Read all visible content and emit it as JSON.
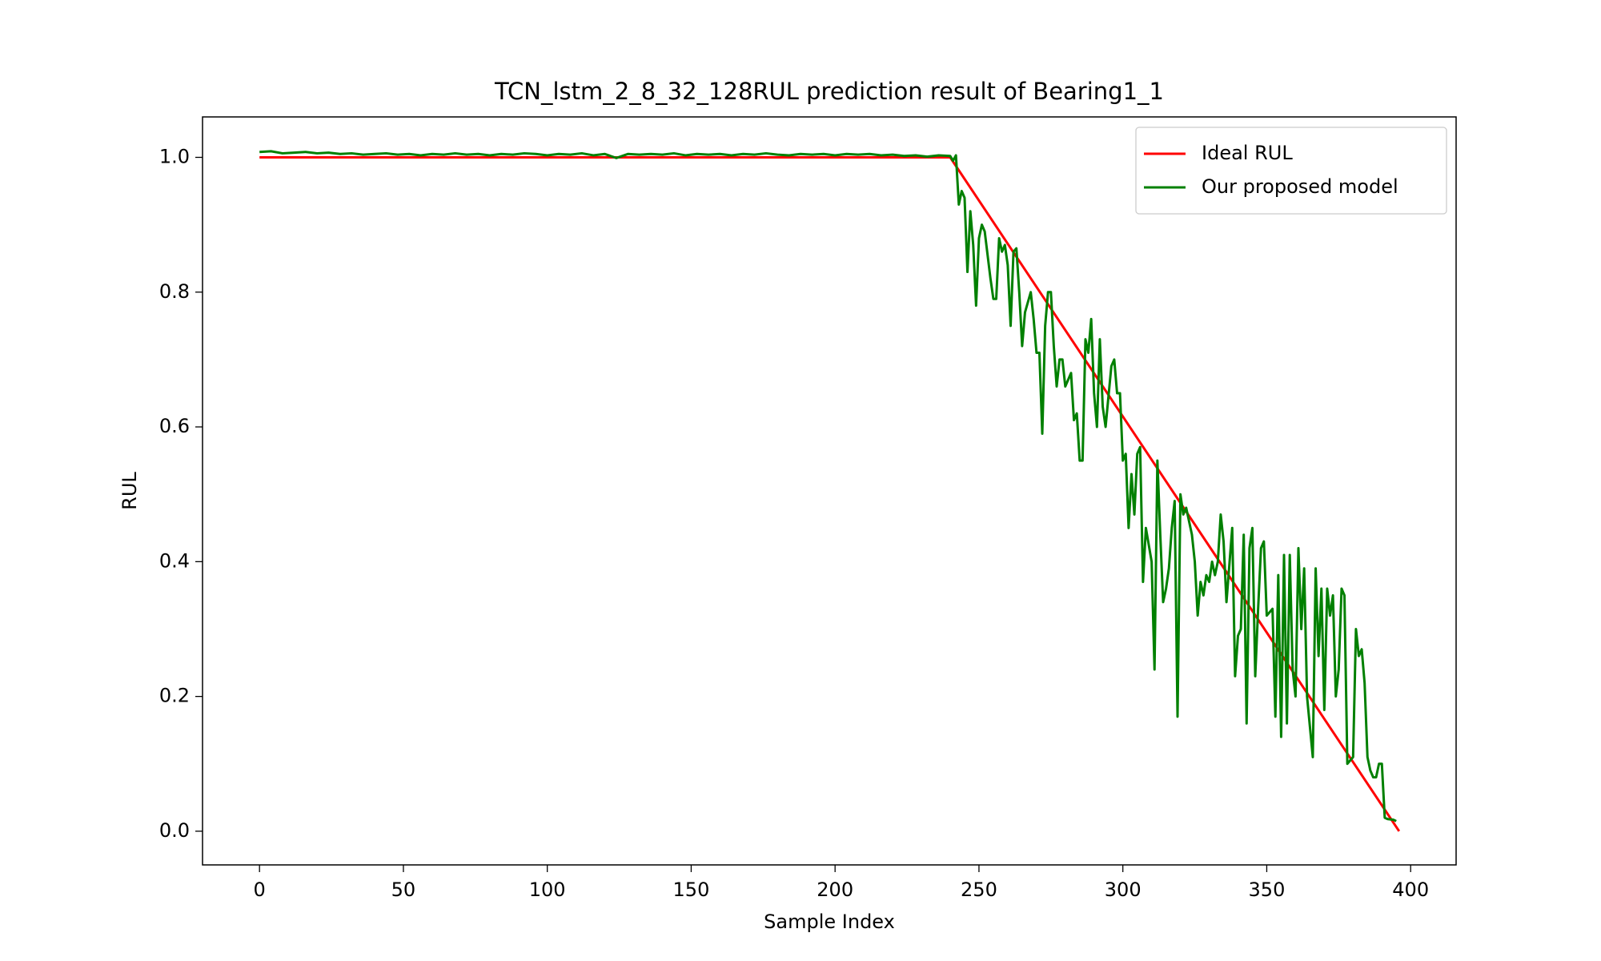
{
  "chart_data": {
    "type": "line",
    "title": "TCN_lstm_2_8_32_128RUL prediction result of Bearing1_1",
    "x_label": "Sample Index",
    "y_label": "RUL",
    "xlim": [
      -19.8,
      415.8
    ],
    "ylim": [
      -0.05,
      1.06
    ],
    "xticks": [
      0,
      50,
      100,
      150,
      200,
      250,
      300,
      350,
      400
    ],
    "yticks": [
      {
        "value": 0,
        "label": "0.0"
      },
      0.2,
      0.4,
      0.6,
      0.8,
      {
        "value": 1,
        "label": "1.0"
      }
    ],
    "legend": "upper right",
    "series": [
      {
        "name": "Ideal RUL",
        "color": "#ff0000",
        "x": [
          0,
          240,
          396
        ],
        "values": [
          1,
          1,
          0
        ]
      },
      {
        "name": "Our proposed model",
        "color": "#008000",
        "x": [
          0,
          4,
          8,
          12,
          16,
          20,
          24,
          28,
          32,
          36,
          40,
          44,
          48,
          52,
          56,
          60,
          64,
          68,
          72,
          76,
          80,
          84,
          88,
          92,
          96,
          100,
          104,
          108,
          112,
          116,
          120,
          124,
          128,
          132,
          136,
          140,
          144,
          148,
          152,
          156,
          160,
          164,
          168,
          172,
          176,
          180,
          184,
          188,
          192,
          196,
          200,
          204,
          208,
          212,
          216,
          220,
          224,
          228,
          232,
          236,
          240,
          241,
          242,
          243,
          244,
          245,
          246,
          247,
          248,
          249,
          250,
          251,
          252,
          254,
          255,
          256,
          257,
          258,
          259,
          260,
          261,
          262,
          263,
          264,
          265,
          266,
          268,
          269,
          270,
          271,
          272,
          273,
          274,
          275,
          276,
          277,
          278,
          279,
          280,
          282,
          283,
          284,
          285,
          286,
          287,
          288,
          289,
          290,
          291,
          292,
          293,
          294,
          296,
          297,
          298,
          299,
          300,
          301,
          302,
          303,
          304,
          305,
          306,
          307,
          308,
          310,
          311,
          312,
          313,
          314,
          315,
          316,
          317,
          318,
          319,
          320,
          321,
          322,
          324,
          325,
          326,
          327,
          328,
          329,
          330,
          331,
          332,
          333,
          334,
          335,
          336,
          338,
          339,
          340,
          341,
          342,
          343,
          344,
          345,
          346,
          347,
          348,
          349,
          350,
          352,
          353,
          354,
          355,
          356,
          357,
          358,
          359,
          360,
          361,
          362,
          363,
          364,
          366,
          367,
          368,
          369,
          370,
          371,
          372,
          373,
          374,
          375,
          376,
          377,
          378,
          380,
          381,
          382,
          383,
          384,
          385,
          386,
          387,
          388,
          389,
          390,
          391,
          392,
          394,
          395
        ],
        "values": [
          1.008,
          1.009,
          1.006,
          1.007,
          1.008,
          1.006,
          1.007,
          1.005,
          1.006,
          1.004,
          1.005,
          1.006,
          1.004,
          1.005,
          1.003,
          1.005,
          1.004,
          1.006,
          1.004,
          1.005,
          1.003,
          1.005,
          1.004,
          1.006,
          1.005,
          1.003,
          1.005,
          1.004,
          1.006,
          1.003,
          1.005,
          0.999,
          1.005,
          1.004,
          1.005,
          1.004,
          1.006,
          1.003,
          1.005,
          1.004,
          1.005,
          1.003,
          1.005,
          1.004,
          1.006,
          1.004,
          1.003,
          1.005,
          1.004,
          1.005,
          1.003,
          1.005,
          1.004,
          1.005,
          1.003,
          1.004,
          1.002,
          1.003,
          1.001,
          1.003,
          1.002,
          0.995,
          1.003,
          0.93,
          0.95,
          0.94,
          0.83,
          0.92,
          0.87,
          0.78,
          0.88,
          0.9,
          0.89,
          0.82,
          0.79,
          0.79,
          0.88,
          0.86,
          0.87,
          0.84,
          0.75,
          0.86,
          0.865,
          0.8,
          0.72,
          0.77,
          0.8,
          0.76,
          0.71,
          0.71,
          0.59,
          0.75,
          0.8,
          0.8,
          0.72,
          0.66,
          0.7,
          0.7,
          0.66,
          0.68,
          0.61,
          0.62,
          0.55,
          0.55,
          0.73,
          0.71,
          0.76,
          0.65,
          0.6,
          0.73,
          0.63,
          0.6,
          0.69,
          0.7,
          0.65,
          0.65,
          0.55,
          0.56,
          0.45,
          0.53,
          0.47,
          0.56,
          0.57,
          0.37,
          0.45,
          0.4,
          0.24,
          0.55,
          0.44,
          0.34,
          0.36,
          0.39,
          0.45,
          0.49,
          0.17,
          0.5,
          0.47,
          0.48,
          0.44,
          0.4,
          0.32,
          0.37,
          0.35,
          0.38,
          0.37,
          0.4,
          0.38,
          0.4,
          0.47,
          0.43,
          0.34,
          0.45,
          0.23,
          0.29,
          0.3,
          0.44,
          0.16,
          0.42,
          0.45,
          0.23,
          0.33,
          0.42,
          0.43,
          0.32,
          0.33,
          0.17,
          0.38,
          0.14,
          0.41,
          0.16,
          0.41,
          0.24,
          0.2,
          0.42,
          0.3,
          0.39,
          0.2,
          0.11,
          0.39,
          0.26,
          0.36,
          0.18,
          0.36,
          0.32,
          0.35,
          0.2,
          0.24,
          0.36,
          0.35,
          0.1,
          0.11,
          0.3,
          0.26,
          0.27,
          0.22,
          0.11,
          0.09,
          0.08,
          0.08,
          0.1,
          0.1,
          0.02,
          0.018,
          0.017,
          0.015
        ]
      }
    ]
  }
}
